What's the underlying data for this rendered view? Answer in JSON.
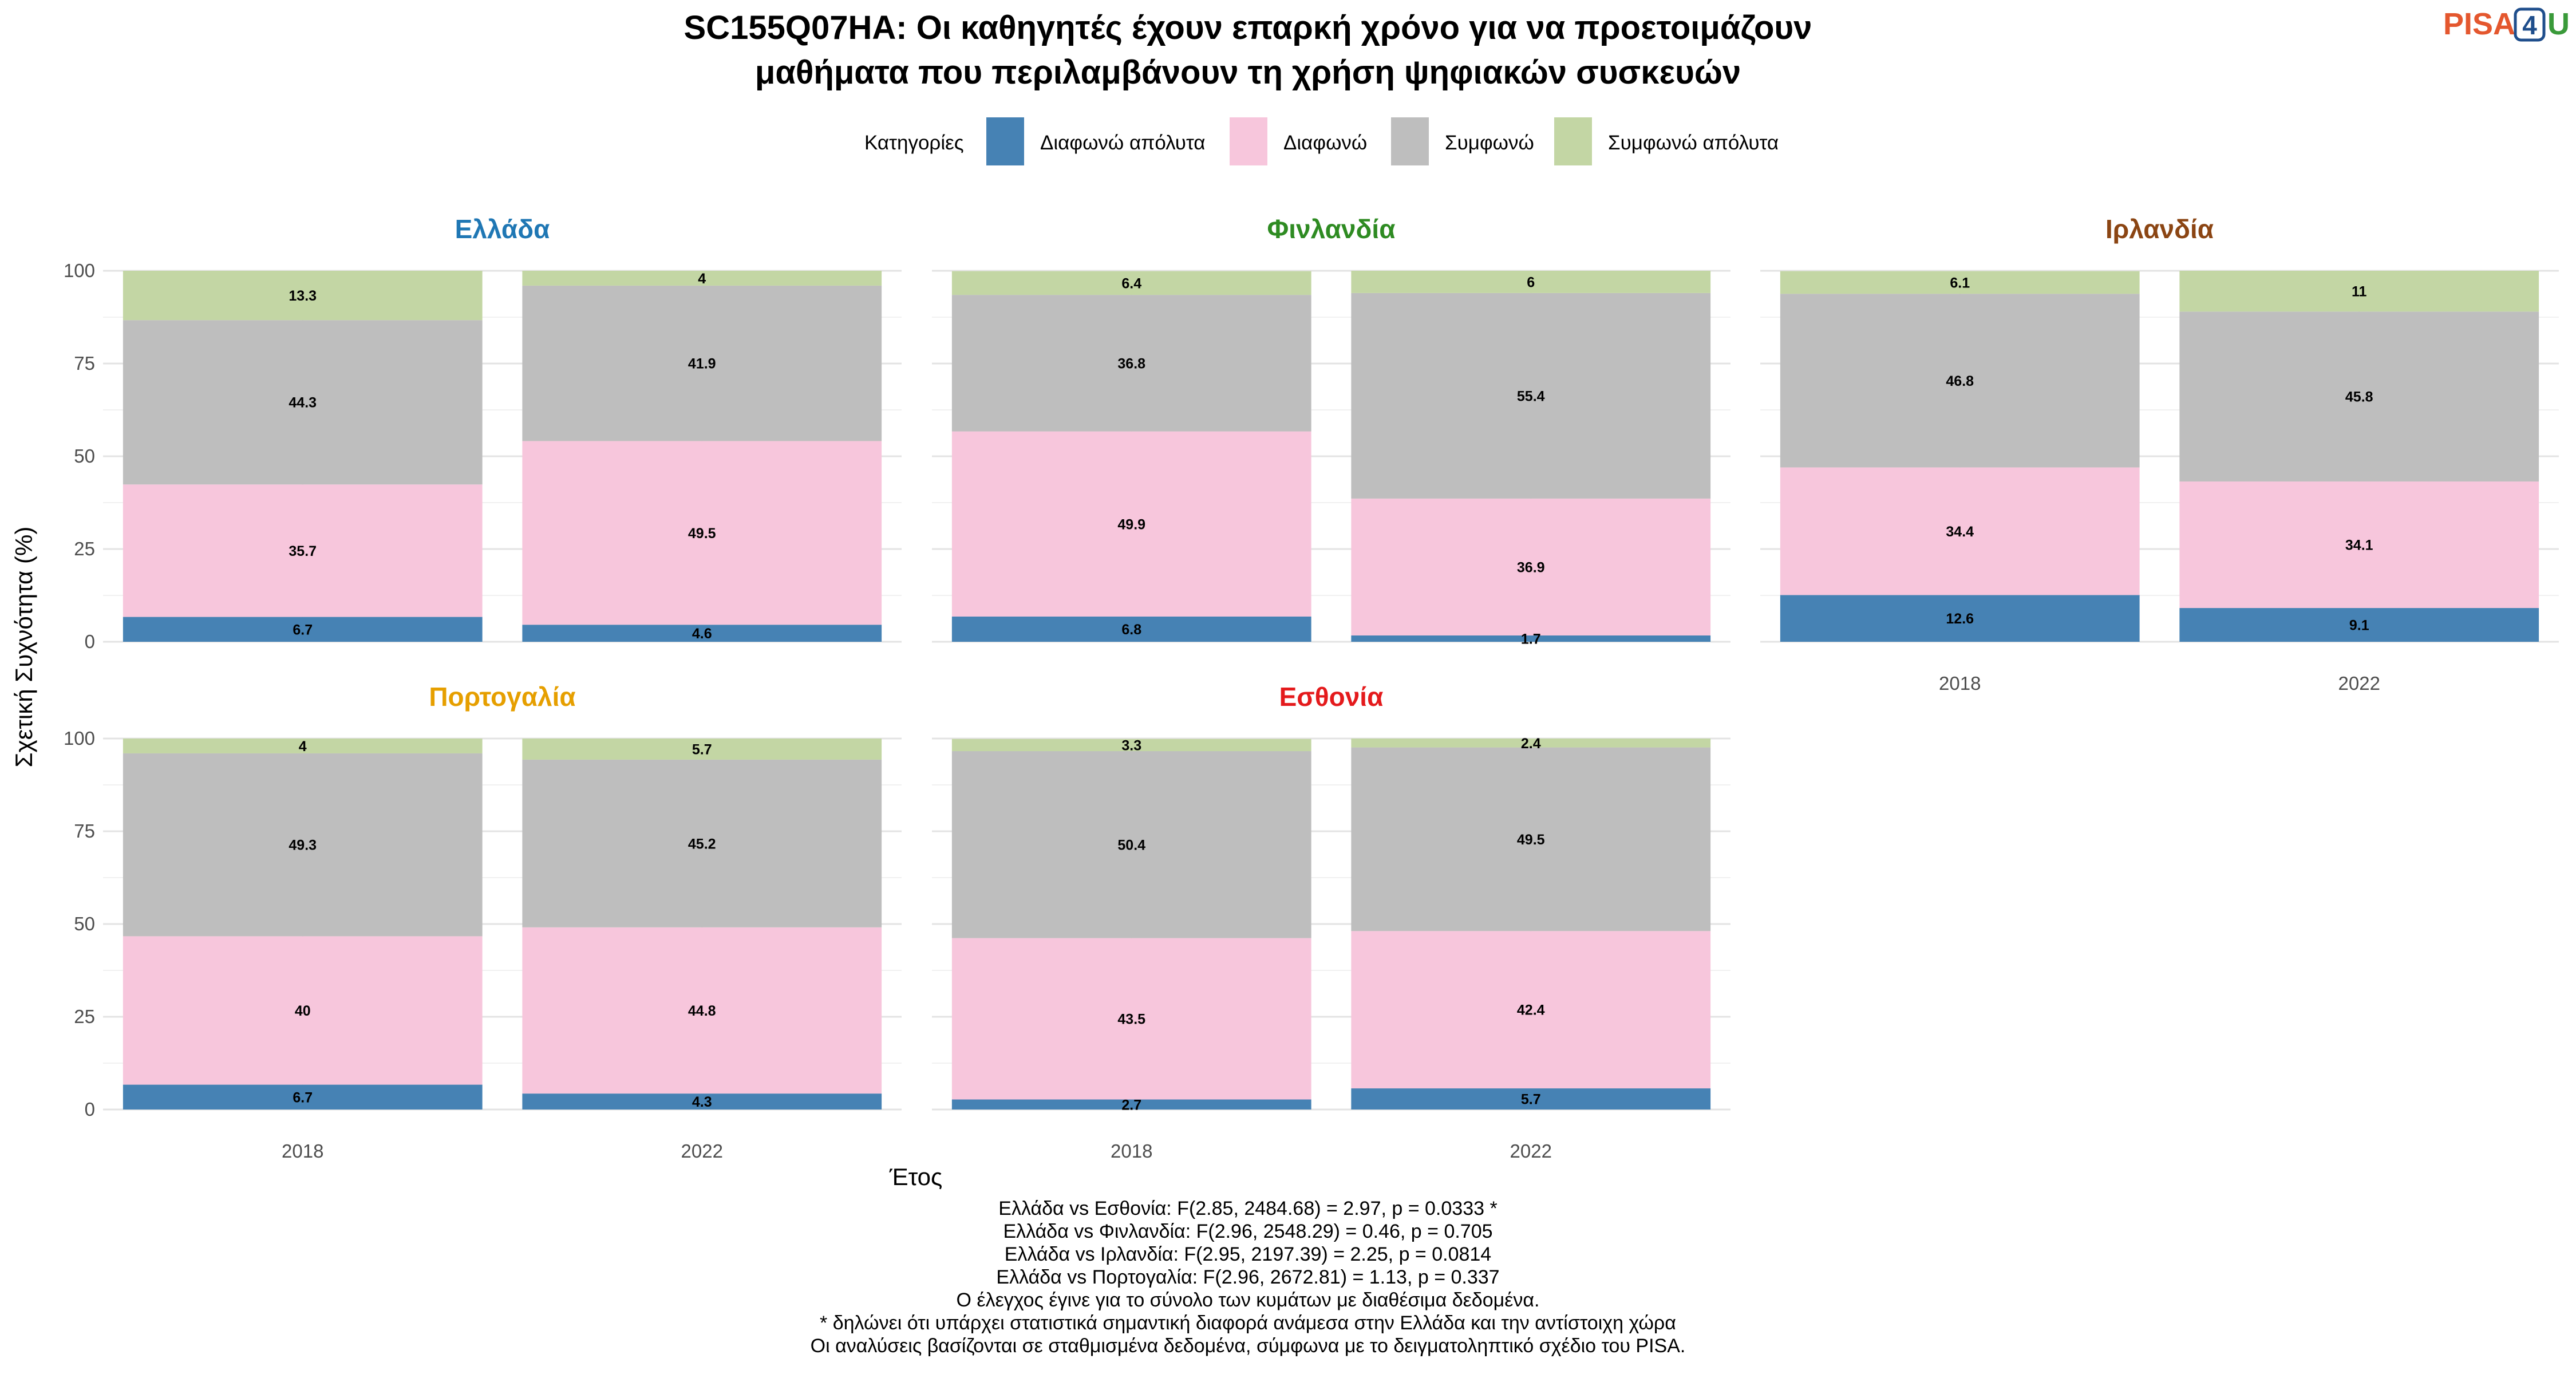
{
  "title_line1": "SC155Q07HA: Οι καθηγητές έχουν επαρκή χρόνο για να προετοιμάζουν",
  "title_line2": "μαθήματα που περιλαμβάνουν τη χρήση ψηφιακών συσκευών",
  "logo": {
    "pisa": "PISA",
    "four": "4",
    "u": "U"
  },
  "legend": {
    "title": "Κατηγορίες",
    "items": [
      {
        "label": "Διαφωνώ απόλυτα",
        "color": "#4682b4"
      },
      {
        "label": "Διαφωνώ",
        "color": "#f7c6dc"
      },
      {
        "label": "Συμφωνώ",
        "color": "#bebebe"
      },
      {
        "label": "Συμφωνώ απόλυτα",
        "color": "#c3d6a4"
      }
    ]
  },
  "captions": [
    "Ελλάδα vs Εσθονία: F(2.85, 2484.68) = 2.97, p = 0.0333 *",
    "Ελλάδα vs Φινλανδία: F(2.96, 2548.29) = 0.46, p = 0.705",
    "Ελλάδα vs Ιρλανδία: F(2.95, 2197.39) = 2.25, p = 0.0814",
    "Ελλάδα vs Πορτογαλία: F(2.96, 2672.81) = 1.13, p = 0.337",
    "Ο έλεγχος έγινε για το σύνολο των κυμάτων με διαθέσιμα δεδομένα.",
    "* δηλώνει ότι υπάρχει στατιστικά σημαντική διαφορά ανάμεσα στην Ελλάδα και την αντίστοιχη χώρα",
    "Οι αναλύσεις βασίζονται σε σταθμισμένα δεδομένα, σύμφωνα με το δειγματοληπτικό σχέδιο του PISA."
  ],
  "chart_data": {
    "type": "bar",
    "stacked": true,
    "xlabel": "Έτος",
    "ylabel": "Σχετική Συχνότητα (%)",
    "ylim": [
      0,
      100
    ],
    "yticks": [
      0,
      25,
      50,
      75,
      100
    ],
    "categories": [
      "2018",
      "2022"
    ],
    "series_names": [
      "Διαφωνώ απόλυτα",
      "Διαφωνώ",
      "Συμφωνώ",
      "Συμφωνώ απόλυτα"
    ],
    "colors": [
      "#4682b4",
      "#f7c6dc",
      "#bebebe",
      "#c3d6a4"
    ],
    "facets": [
      {
        "name": "Ελλάδα",
        "color": "#1f77b4",
        "values": {
          "2018": [
            6.7,
            35.7,
            44.3,
            13.3
          ],
          "2022": [
            4.6,
            49.5,
            41.9,
            4
          ]
        },
        "labels": {
          "2018": [
            "6.7",
            "35.7",
            "44.3",
            "13.3"
          ],
          "2022": [
            "4.6",
            "49.5",
            "41.9",
            "4"
          ]
        }
      },
      {
        "name": "Φινλανδία",
        "color": "#2e8b22",
        "values": {
          "2018": [
            6.8,
            49.9,
            36.8,
            6.4
          ],
          "2022": [
            1.7,
            36.9,
            55.4,
            6
          ]
        },
        "labels": {
          "2018": [
            "6.8",
            "49.9",
            "36.8",
            "6.4"
          ],
          "2022": [
            "1.7",
            "36.9",
            "55.4",
            "6"
          ]
        }
      },
      {
        "name": "Ιρλανδία",
        "color": "#8b4513",
        "values": {
          "2018": [
            12.6,
            34.4,
            46.8,
            6.1
          ],
          "2022": [
            9.1,
            34.1,
            45.8,
            11
          ]
        },
        "labels": {
          "2018": [
            "12.6",
            "34.4",
            "46.8",
            "6.1"
          ],
          "2022": [
            "9.1",
            "34.1",
            "45.8",
            "11"
          ]
        }
      },
      {
        "name": "Πορτογαλία",
        "color": "#e69f00",
        "values": {
          "2018": [
            6.7,
            40,
            49.3,
            4
          ],
          "2022": [
            4.3,
            44.8,
            45.2,
            5.7
          ]
        },
        "labels": {
          "2018": [
            "6.7",
            "40",
            "49.3",
            "4"
          ],
          "2022": [
            "4.3",
            "44.8",
            "45.2",
            "5.7"
          ]
        }
      },
      {
        "name": "Εσθονία",
        "color": "#e41a1c",
        "values": {
          "2018": [
            2.7,
            43.5,
            50.4,
            3.3
          ],
          "2022": [
            5.7,
            42.4,
            49.5,
            2.4
          ]
        },
        "labels": {
          "2018": [
            "2.7",
            "43.5",
            "50.4",
            "3.3"
          ],
          "2022": [
            "5.7",
            "42.4",
            "49.5",
            "2.4"
          ]
        }
      }
    ]
  }
}
